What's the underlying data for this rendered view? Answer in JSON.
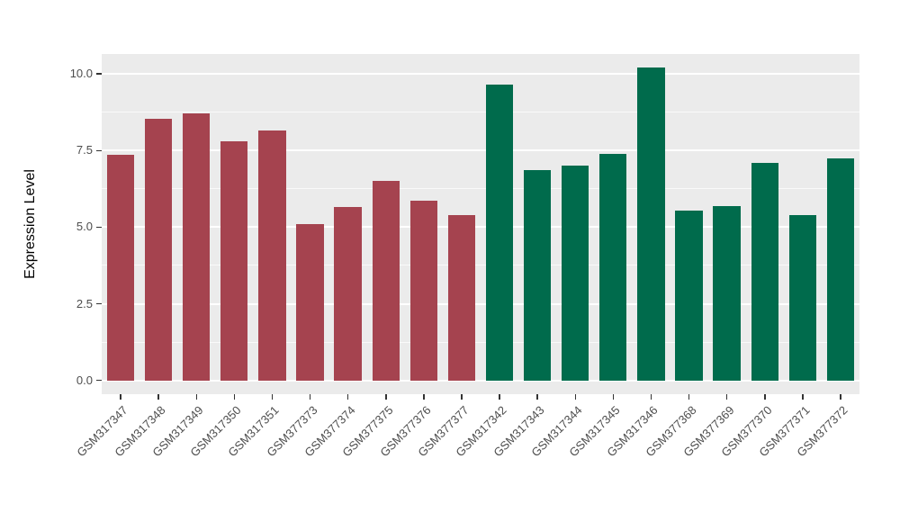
{
  "chart_data": {
    "type": "bar",
    "title": "",
    "xlabel": "",
    "ylabel": "Expression Level",
    "ylim": [
      -0.45,
      10.65
    ],
    "yticks": [
      0,
      2.5,
      5,
      7.5,
      10
    ],
    "ytick_labels": [
      "0.0",
      "2.5",
      "5.0",
      "7.5",
      "10.0"
    ],
    "minor_gridlines": [
      1.25,
      3.75,
      6.25,
      8.75
    ],
    "grid": "on",
    "legend_position": "none",
    "panel_background": "#EBEBEB",
    "gridline_color": "#FFFFFF",
    "categories": [
      "GSM317347",
      "GSM317348",
      "GSM317349",
      "GSM317350",
      "GSM317351",
      "GSM377373",
      "GSM377374",
      "GSM377375",
      "GSM377376",
      "GSM377377",
      "GSM317342",
      "GSM317343",
      "GSM317344",
      "GSM317345",
      "GSM317346",
      "GSM377368",
      "GSM377369",
      "GSM377370",
      "GSM377371",
      "GSM377372"
    ],
    "values": [
      7.35,
      8.55,
      8.7,
      7.8,
      8.15,
      5.1,
      5.65,
      6.5,
      5.85,
      5.4,
      9.65,
      6.85,
      7.0,
      7.4,
      10.2,
      5.55,
      5.7,
      7.1,
      5.4,
      7.25
    ],
    "groups": [
      "group1",
      "group1",
      "group1",
      "group1",
      "group1",
      "group1",
      "group1",
      "group1",
      "group1",
      "group1",
      "group2",
      "group2",
      "group2",
      "group2",
      "group2",
      "group2",
      "group2",
      "group2",
      "group2",
      "group2"
    ],
    "group_colors": {
      "group1": "#A5434F",
      "group2": "#006B4C"
    }
  }
}
